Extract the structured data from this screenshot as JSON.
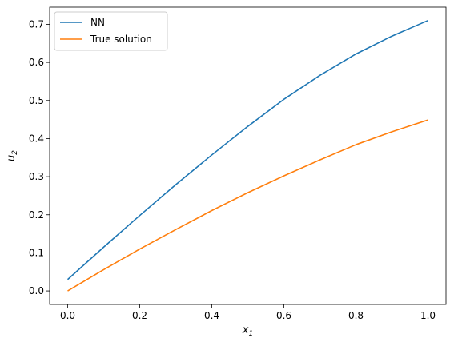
{
  "chart_data": {
    "type": "line",
    "title": "",
    "xlabel": "x",
    "xlabel_sub": "1",
    "ylabel": "u",
    "ylabel_sub": "2",
    "xlim": [
      -0.05,
      1.05
    ],
    "ylim": [
      -0.0355,
      0.745
    ],
    "xticks": [
      0.0,
      0.2,
      0.4,
      0.6,
      0.8,
      1.0
    ],
    "xtick_labels": [
      "0.0",
      "0.2",
      "0.4",
      "0.6",
      "0.8",
      "1.0"
    ],
    "yticks": [
      0.0,
      0.1,
      0.2,
      0.3,
      0.4,
      0.5,
      0.6,
      0.7
    ],
    "ytick_labels": [
      "0.0",
      "0.1",
      "0.2",
      "0.3",
      "0.4",
      "0.5",
      "0.6",
      "0.7"
    ],
    "grid": false,
    "legend_position": "top-left",
    "x": [
      0.0,
      0.1,
      0.2,
      0.3,
      0.4,
      0.5,
      0.6,
      0.7,
      0.8,
      0.9,
      1.0
    ],
    "series": [
      {
        "name": "NN",
        "color": "#1f77b4",
        "values": [
          0.03,
          0.115,
          0.198,
          0.279,
          0.357,
          0.432,
          0.503,
          0.566,
          0.622,
          0.669,
          0.71
        ]
      },
      {
        "name": "True solution",
        "color": "#ff7f0e",
        "values": [
          0.0,
          0.056,
          0.11,
          0.161,
          0.211,
          0.258,
          0.302,
          0.344,
          0.384,
          0.418,
          0.449
        ]
      }
    ]
  }
}
